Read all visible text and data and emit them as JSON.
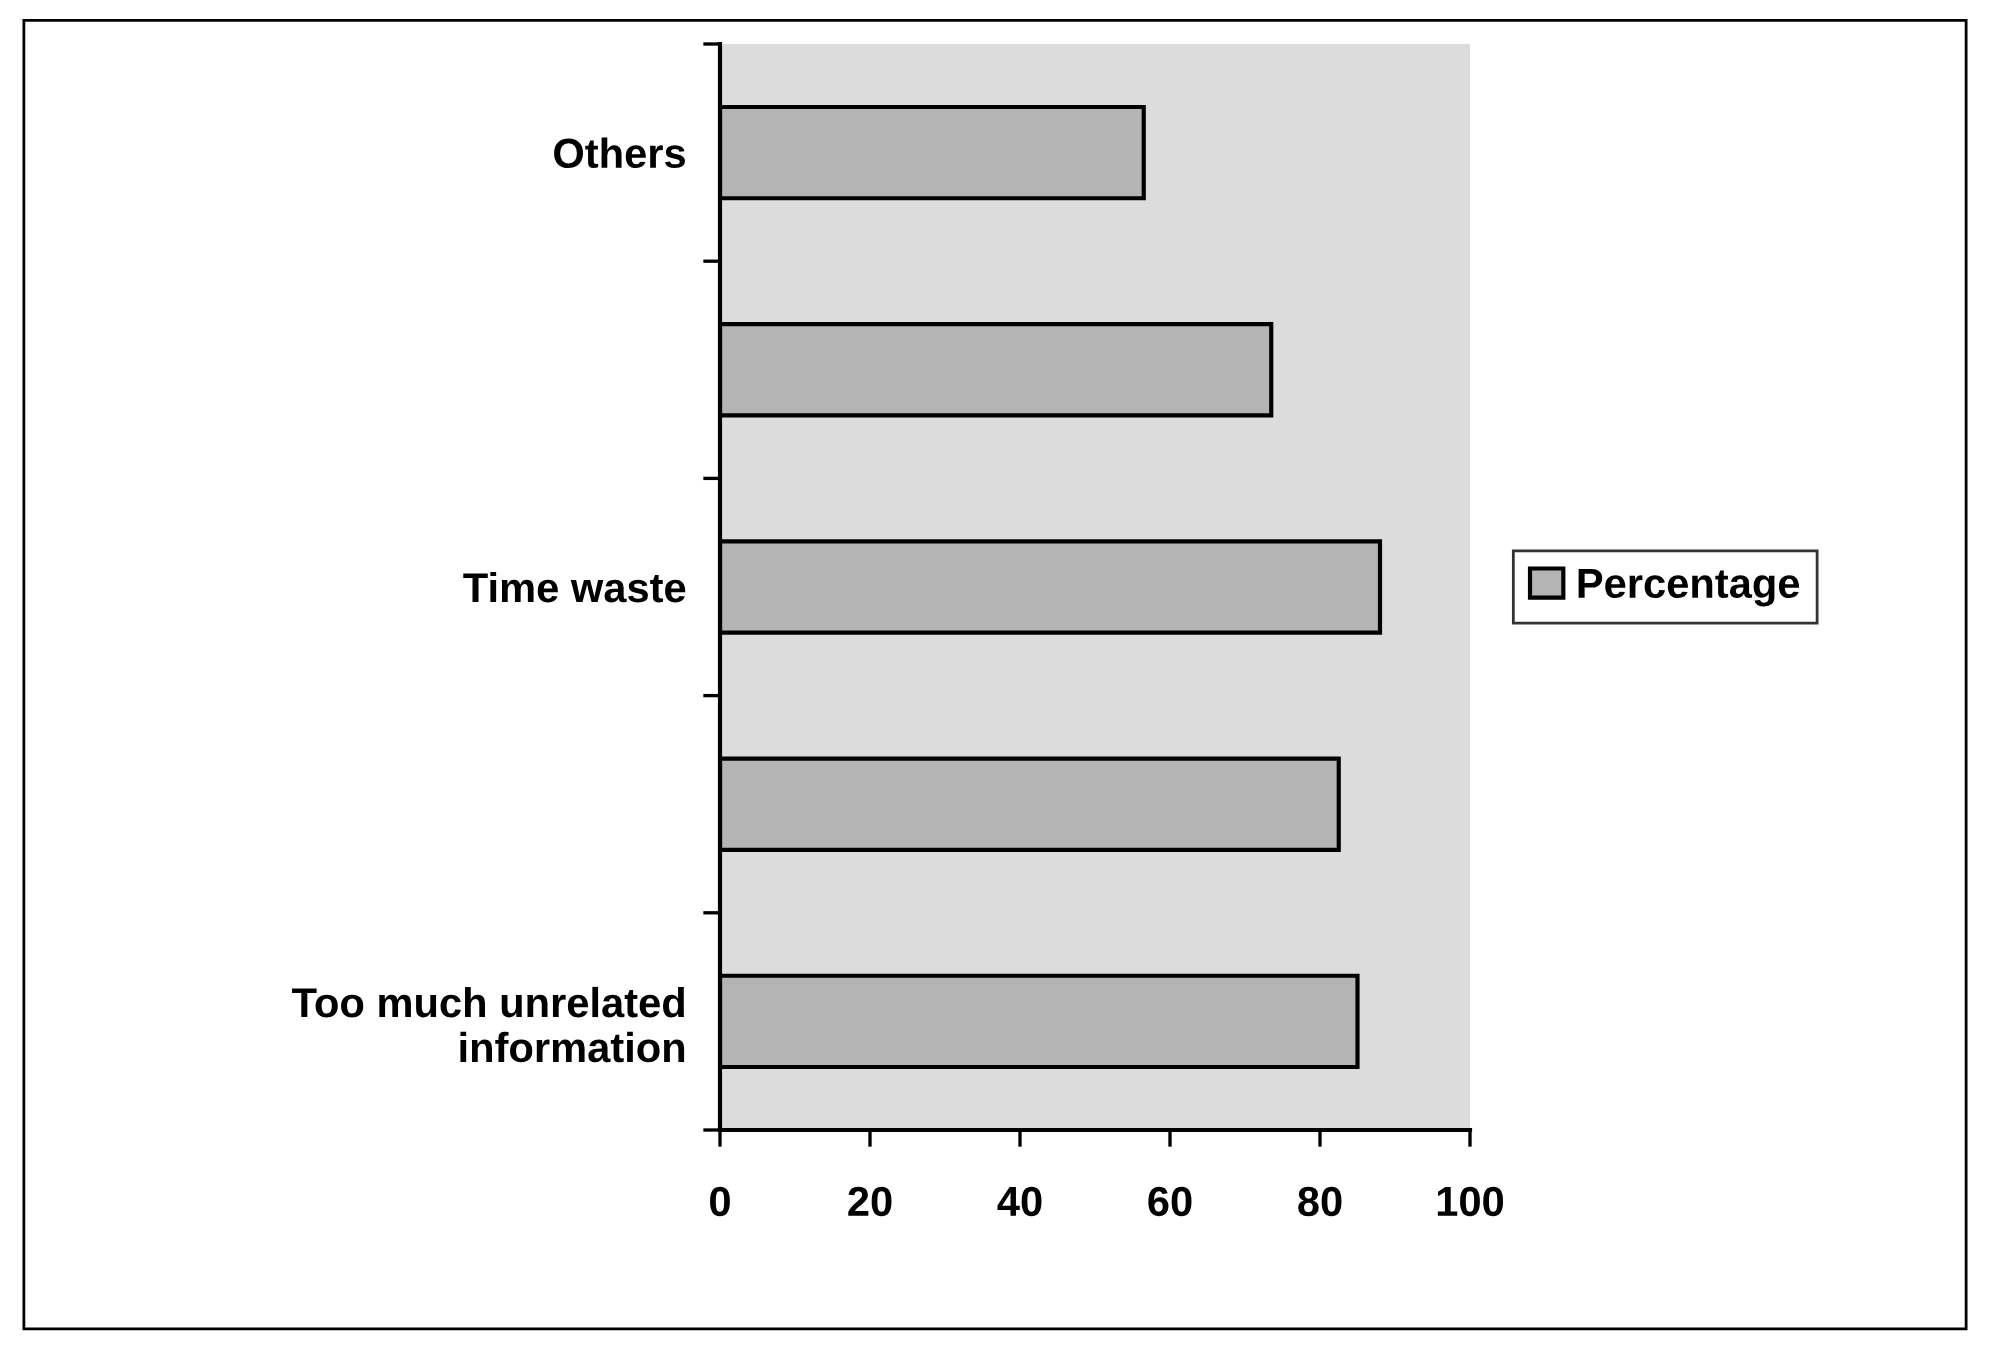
{
  "chart_data": {
    "type": "bar",
    "orientation": "horizontal",
    "categories": [
      "Others",
      null,
      "Time waste",
      null,
      "Too much unrelated\ninformation"
    ],
    "series": [
      {
        "name": "Percentage",
        "color": "#b4b4b4",
        "values": [
          56.5,
          73.5,
          88,
          82.5,
          85
        ]
      }
    ],
    "xlim": [
      0,
      100
    ],
    "xticks": [
      0,
      20,
      40,
      60,
      80,
      100
    ],
    "grid": false,
    "legend": "right"
  }
}
